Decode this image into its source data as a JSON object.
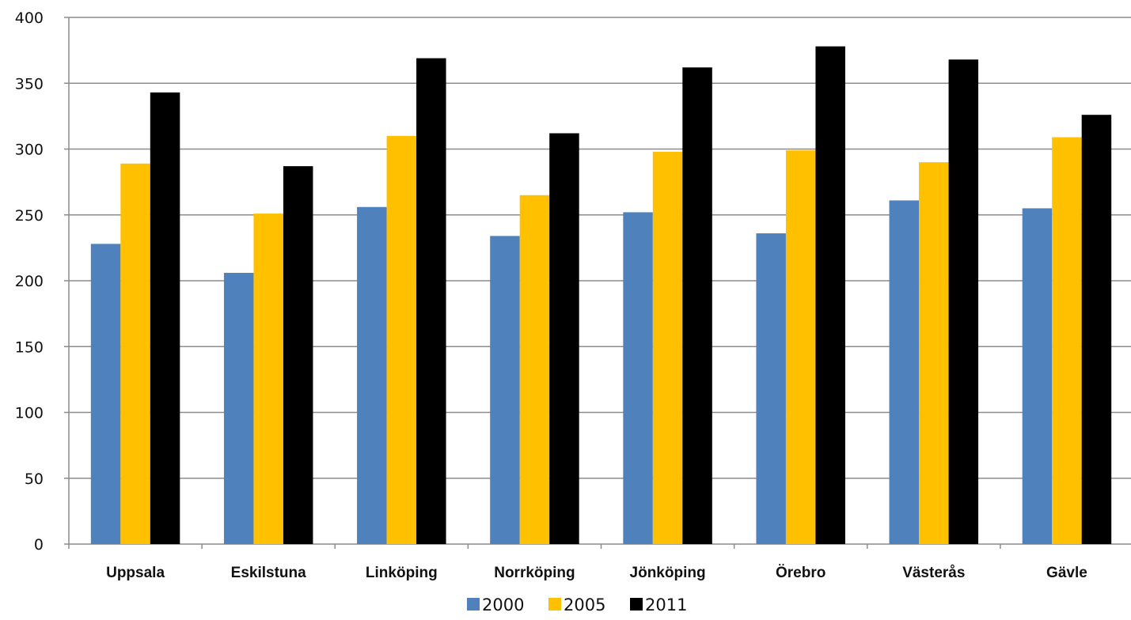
{
  "chart_data": {
    "type": "bar",
    "title": "",
    "xlabel": "",
    "ylabel": "",
    "ylim": [
      0,
      400
    ],
    "yticks": [
      0,
      50,
      100,
      150,
      200,
      250,
      300,
      350,
      400
    ],
    "grid": "horizontal",
    "legend_position": "bottom",
    "categories": [
      "Uppsala",
      "Eskilstuna",
      "Linköping",
      "Norrköping",
      "Jönköping",
      "Örebro",
      "Västerås",
      "Gävle"
    ],
    "series": [
      {
        "name": "2000",
        "color": "#4F81BD",
        "values": [
          228,
          206,
          256,
          234,
          252,
          236,
          261,
          255
        ]
      },
      {
        "name": "2005",
        "color": "#FFC000",
        "values": [
          289,
          251,
          310,
          265,
          298,
          299,
          290,
          309
        ]
      },
      {
        "name": "2011",
        "color": "#000000",
        "values": [
          343,
          287,
          369,
          312,
          362,
          378,
          368,
          326
        ]
      }
    ]
  }
}
